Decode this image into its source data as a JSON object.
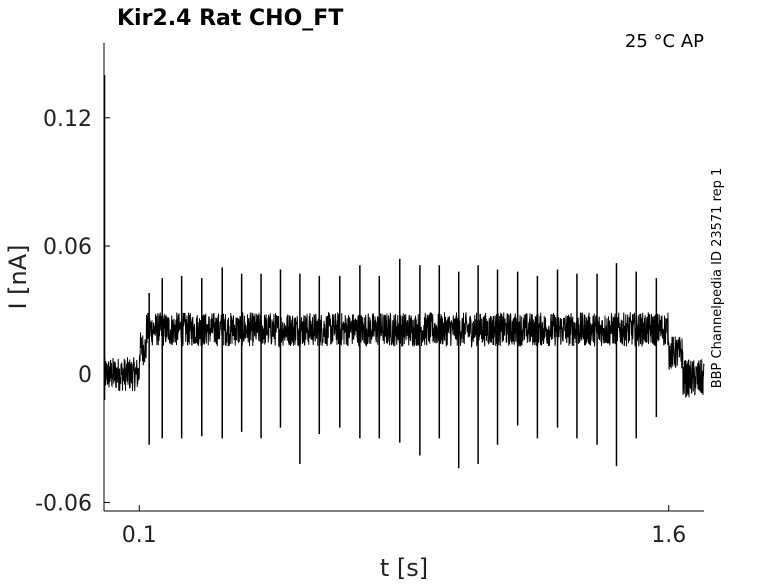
{
  "chart_data": {
    "type": "line",
    "title": "Kir2.4  Rat  CHO_FT",
    "annotation_top_right": "25 °C  AP",
    "side_label": "BBP Channelpedia ID 23571 rep 1",
    "xlabel": "t [s]",
    "ylabel": "I [nA]",
    "x_ticks": [
      "0.1",
      "1.6"
    ],
    "x_tick_values": [
      0.1,
      1.6
    ],
    "y_ticks": [
      "0.12",
      "0.06",
      "0",
      "-0.06"
    ],
    "y_tick_values": [
      0.12,
      0.06,
      0,
      -0.06
    ],
    "xlim": [
      0.0,
      1.7
    ],
    "ylim": [
      -0.064,
      0.155
    ],
    "series": [
      {
        "color": "#000000",
        "segments": [
          {
            "t_start": 0.0,
            "t_end": 0.1,
            "mean": 0.0,
            "noise": 0.008
          },
          {
            "t_start": 0.1,
            "t_end": 0.12,
            "mean": 0.012,
            "noise": 0.008
          },
          {
            "t_start": 0.12,
            "t_end": 1.6,
            "mean": 0.021,
            "noise": 0.008
          },
          {
            "t_start": 1.6,
            "t_end": 1.64,
            "mean": 0.01,
            "noise": 0.008
          },
          {
            "t_start": 1.64,
            "t_end": 1.7,
            "mean": -0.002,
            "noise": 0.009
          }
        ],
        "initial_transient": {
          "t": 0.0,
          "peak": 0.14,
          "trough": -0.012
        },
        "spikes": [
          {
            "t": 0.128,
            "peak": 0.038,
            "trough": -0.033
          },
          {
            "t": 0.165,
            "peak": 0.045,
            "trough": -0.03
          },
          {
            "t": 0.22,
            "peak": 0.046,
            "trough": -0.03
          },
          {
            "t": 0.277,
            "peak": 0.045,
            "trough": -0.029
          },
          {
            "t": 0.335,
            "peak": 0.05,
            "trough": -0.03
          },
          {
            "t": 0.39,
            "peak": 0.047,
            "trough": -0.027
          },
          {
            "t": 0.445,
            "peak": 0.047,
            "trough": -0.03
          },
          {
            "t": 0.5,
            "peak": 0.049,
            "trough": -0.025
          },
          {
            "t": 0.555,
            "peak": 0.047,
            "trough": -0.042
          },
          {
            "t": 0.61,
            "peak": 0.046,
            "trough": -0.028
          },
          {
            "t": 0.668,
            "peak": 0.046,
            "trough": -0.025
          },
          {
            "t": 0.725,
            "peak": 0.051,
            "trough": -0.03
          },
          {
            "t": 0.78,
            "peak": 0.046,
            "trough": -0.03
          },
          {
            "t": 0.838,
            "peak": 0.054,
            "trough": -0.032
          },
          {
            "t": 0.895,
            "peak": 0.051,
            "trough": -0.038
          },
          {
            "t": 0.95,
            "peak": 0.051,
            "trough": -0.03
          },
          {
            "t": 1.005,
            "peak": 0.048,
            "trough": -0.044
          },
          {
            "t": 1.06,
            "peak": 0.051,
            "trough": -0.042
          },
          {
            "t": 1.115,
            "peak": 0.049,
            "trough": -0.033
          },
          {
            "t": 1.172,
            "peak": 0.048,
            "trough": -0.024
          },
          {
            "t": 1.228,
            "peak": 0.046,
            "trough": -0.03
          },
          {
            "t": 1.285,
            "peak": 0.049,
            "trough": -0.025
          },
          {
            "t": 1.34,
            "peak": 0.047,
            "trough": -0.03
          },
          {
            "t": 1.397,
            "peak": 0.047,
            "trough": -0.033
          },
          {
            "t": 1.452,
            "peak": 0.052,
            "trough": -0.043
          },
          {
            "t": 1.508,
            "peak": 0.048,
            "trough": -0.03
          },
          {
            "t": 1.565,
            "peak": 0.045,
            "trough": -0.02
          }
        ]
      }
    ],
    "grid": false,
    "legend": "none"
  }
}
